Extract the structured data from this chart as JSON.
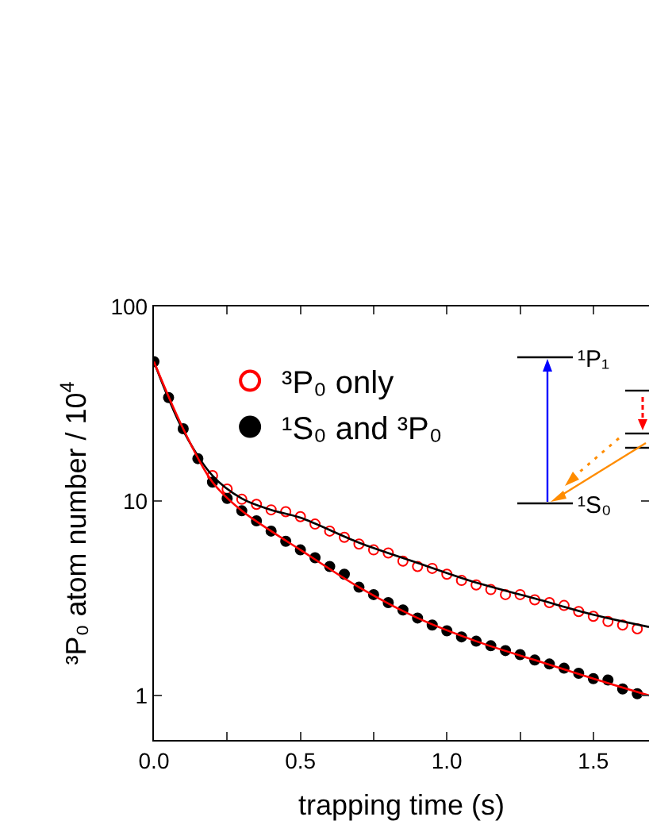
{
  "chart_data": {
    "type": "scatter",
    "xlabel": "trapping time (s)",
    "ylabel": "³P₀ atom number / 10$^{4}$",
    "log": "y",
    "xlim": [
      0,
      1.69
    ],
    "ylim": [
      0.59,
      100
    ],
    "xticks": [
      {
        "value": 0,
        "label": "0.0"
      },
      {
        "value": 0.25,
        "label": null
      },
      {
        "value": 0.5,
        "label": "0.5"
      },
      {
        "value": 0.75,
        "label": null
      },
      {
        "value": 1,
        "label": "1.0"
      },
      {
        "value": 1.25,
        "label": null
      },
      {
        "value": 1.5,
        "label": "1.5"
      }
    ],
    "yticks": [
      1,
      10,
      100
    ],
    "grid": false,
    "legend": "top left",
    "x": [
      0,
      0.05,
      0.1,
      0.15,
      0.2,
      0.25,
      0.3,
      0.35,
      0.4,
      0.45,
      0.5,
      0.55,
      0.6,
      0.65,
      0.7,
      0.75,
      0.8,
      0.85,
      0.9,
      0.95,
      1.0,
      1.05,
      1.1,
      1.15,
      1.2,
      1.25,
      1.3,
      1.35,
      1.4,
      1.45,
      1.5,
      1.55,
      1.6,
      1.65
    ],
    "series": [
      {
        "name": "³P₀ only",
        "color": "#ff0000",
        "marker": "circle-open",
        "values": [
          null,
          null,
          null,
          null,
          13.5,
          11.5,
          10.2,
          9.6,
          9.0,
          8.8,
          8.3,
          7.6,
          7.0,
          6.5,
          6.0,
          5.6,
          5.4,
          4.9,
          4.6,
          4.5,
          4.2,
          3.9,
          3.7,
          3.5,
          3.3,
          3.3,
          3.1,
          3.0,
          2.9,
          2.7,
          2.55,
          2.4,
          2.3,
          2.2
        ]
      },
      {
        "name": "¹S₀ and ³P₀",
        "color": "#000000",
        "marker": "circle",
        "values": [
          52,
          34,
          23.5,
          16.5,
          12.5,
          10.3,
          8.9,
          7.9,
          7.0,
          6.2,
          5.6,
          5.1,
          4.6,
          4.2,
          3.6,
          3.3,
          3.0,
          2.75,
          2.5,
          2.3,
          2.15,
          2.0,
          1.9,
          1.8,
          1.7,
          1.62,
          1.52,
          1.45,
          1.38,
          1.3,
          1.22,
          1.2,
          1.08,
          1.02
        ]
      },
      {
        "type": "line",
        "color": "#000000",
        "marker": "none",
        "x": [
          0,
          0.1,
          0.2,
          0.3,
          0.4,
          0.5,
          0.7,
          0.9,
          1.1,
          1.3,
          1.5,
          1.69
        ],
        "values": [
          52,
          23,
          13.5,
          10.3,
          9.0,
          8.2,
          6.1,
          4.8,
          3.8,
          3.15,
          2.6,
          2.25
        ]
      },
      {
        "type": "line",
        "color": "#ff0000",
        "marker": "none",
        "x": [
          0,
          0.1,
          0.2,
          0.3,
          0.4,
          0.5,
          0.7,
          0.9,
          1.1,
          1.3,
          1.5,
          1.69
        ],
        "values": [
          52,
          23.5,
          12.5,
          8.9,
          7.0,
          5.6,
          3.6,
          2.5,
          1.9,
          1.52,
          1.22,
          1.0
        ]
      }
    ],
    "annotations": [
      "¹P₁",
      "¹S₀"
    ]
  }
}
